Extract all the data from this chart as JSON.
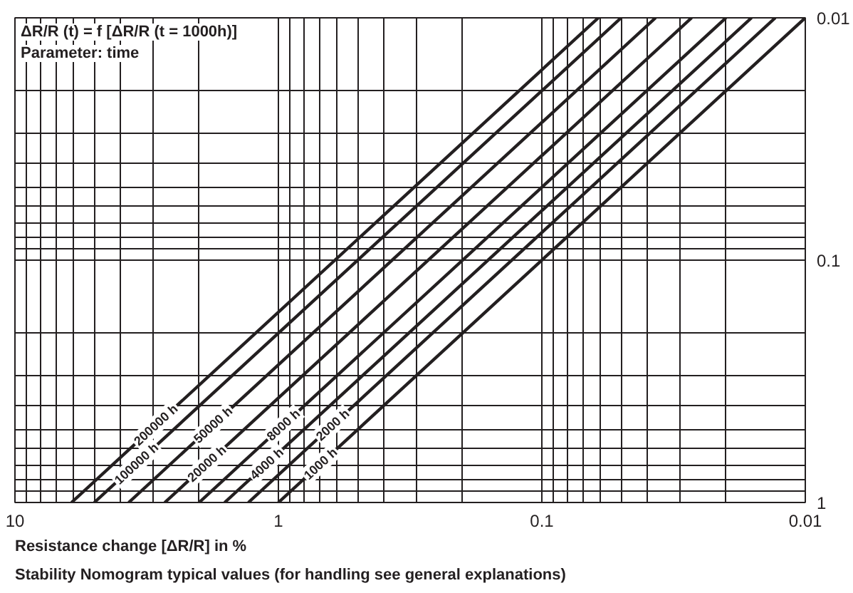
{
  "chart_data": {
    "type": "line",
    "title": "ΔR/R (t) = f [ΔR/R (t = 1000h)]",
    "subtitle": "Parameter: time",
    "xlabel": "Resistance change [ΔR/R] in %",
    "annotations": [
      "Stability Nomogram typical values (for handling see general explanations)"
    ],
    "log": "xy",
    "xlim": [
      10,
      0.01
    ],
    "ylim": [
      1,
      0.01
    ],
    "xticks": [
      10,
      {
        "value": 9,
        "label": null
      },
      {
        "value": 8,
        "label": null
      },
      {
        "value": 7,
        "label": null
      },
      {
        "value": 6,
        "label": null
      },
      {
        "value": 5,
        "label": null
      },
      {
        "value": 4,
        "label": null
      },
      {
        "value": 3,
        "label": null
      },
      {
        "value": 2,
        "label": null
      },
      1,
      {
        "value": 0.9,
        "label": null
      },
      {
        "value": 0.8,
        "label": null
      },
      {
        "value": 0.7,
        "label": null
      },
      {
        "value": 0.6,
        "label": null
      },
      {
        "value": 0.5,
        "label": null
      },
      {
        "value": 0.4,
        "label": null
      },
      {
        "value": 0.3,
        "label": null
      },
      {
        "value": 0.2,
        "label": null
      },
      0.1,
      {
        "value": 0.09,
        "label": null
      },
      {
        "value": 0.08,
        "label": null
      },
      {
        "value": 0.07,
        "label": null
      },
      {
        "value": 0.06,
        "label": null
      },
      {
        "value": 0.05,
        "label": null
      },
      {
        "value": 0.04,
        "label": null
      },
      {
        "value": 0.03,
        "label": null
      },
      {
        "value": 0.02,
        "label": null
      },
      0.01
    ],
    "yticks": [
      1,
      {
        "value": 0.9,
        "label": null
      },
      {
        "value": 0.8,
        "label": null
      },
      {
        "value": 0.7,
        "label": null
      },
      {
        "value": 0.6,
        "label": null
      },
      {
        "value": 0.5,
        "label": null
      },
      {
        "value": 0.4,
        "label": null
      },
      {
        "value": 0.3,
        "label": null
      },
      {
        "value": 0.2,
        "label": null
      },
      0.1,
      {
        "value": 0.09,
        "label": null
      },
      {
        "value": 0.08,
        "label": null
      },
      {
        "value": 0.07,
        "label": null
      },
      {
        "value": 0.06,
        "label": null
      },
      {
        "value": 0.05,
        "label": null
      },
      {
        "value": 0.04,
        "label": null
      },
      {
        "value": 0.03,
        "label": null
      },
      {
        "value": 0.02,
        "label": null
      },
      0.01
    ],
    "grid": true,
    "line_style": "solid",
    "series": [
      {
        "name": "200000 h",
        "color": "#231f20",
        "x": [
          6.1,
          0.061
        ],
        "values": [
          1,
          0.01
        ]
      },
      {
        "name": "100000 h",
        "color": "#231f20",
        "x": [
          5.0,
          0.05
        ],
        "values": [
          1,
          0.01
        ]
      },
      {
        "name": "50000 h",
        "color": "#231f20",
        "x": [
          3.7,
          0.037
        ],
        "values": [
          1,
          0.01
        ]
      },
      {
        "name": "20000 h",
        "color": "#231f20",
        "x": [
          2.7,
          0.027
        ],
        "values": [
          1,
          0.01
        ]
      },
      {
        "name": "8000 h",
        "color": "#231f20",
        "x": [
          2.0,
          0.02
        ],
        "values": [
          1,
          0.01
        ]
      },
      {
        "name": "4000 h",
        "color": "#231f20",
        "x": [
          1.6,
          0.016
        ],
        "values": [
          1,
          0.01
        ]
      },
      {
        "name": "2000 h",
        "color": "#231f20",
        "x": [
          1.3,
          0.013
        ],
        "values": [
          1,
          0.01
        ]
      },
      {
        "name": "1000 h",
        "color": "#231f20",
        "x": [
          1.0,
          0.01
        ],
        "values": [
          1,
          0.01
        ]
      }
    ]
  }
}
